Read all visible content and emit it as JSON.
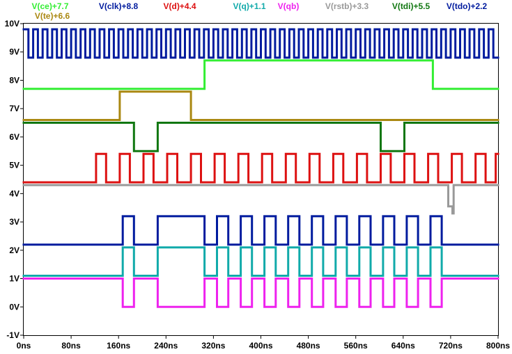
{
  "chart_data": {
    "type": "line",
    "xlabels": [
      "0ns",
      "80ns",
      "160ns",
      "240ns",
      "320ns",
      "400ns",
      "480ns",
      "560ns",
      "640ns",
      "720ns",
      "800ns"
    ],
    "ylabels": [
      "10V",
      "9V",
      "8V",
      "7V",
      "6V",
      "5V",
      "4V",
      "3V",
      "2V",
      "1V",
      "0V",
      "-1V"
    ],
    "xlim": [
      0,
      800
    ],
    "ylim": [
      -1,
      10
    ],
    "x_unit": "ns",
    "y_unit": "V",
    "grid": false,
    "legend_placement": "top",
    "series": [
      {
        "name": "V(ce)+7.7",
        "color": "#33ee33",
        "offset": 7.7,
        "kind": "steps",
        "initial": 0,
        "transitions": [
          [
            305,
            1
          ],
          [
            690,
            0
          ]
        ]
      },
      {
        "name": "V(clk)+8.8",
        "color": "#001b9e",
        "offset": 8.8,
        "kind": "clock",
        "period": 16,
        "duty": 0.5
      },
      {
        "name": "V(d)+4.4",
        "color": "#dd1111",
        "offset": 4.4,
        "kind": "steps",
        "initial": 0,
        "transitions": [
          [
            122,
            1
          ],
          [
            139,
            0
          ],
          [
            162,
            1
          ],
          [
            179,
            0
          ],
          [
            202,
            1
          ],
          [
            219,
            0
          ],
          [
            242,
            1
          ],
          [
            259,
            0
          ],
          [
            282,
            1
          ],
          [
            299,
            0
          ],
          [
            322,
            1
          ],
          [
            339,
            0
          ],
          [
            362,
            1
          ],
          [
            379,
            0
          ],
          [
            402,
            1
          ],
          [
            419,
            0
          ],
          [
            442,
            1
          ],
          [
            459,
            0
          ],
          [
            482,
            1
          ],
          [
            499,
            0
          ],
          [
            522,
            1
          ],
          [
            539,
            0
          ],
          [
            562,
            1
          ],
          [
            579,
            0
          ],
          [
            602,
            1
          ],
          [
            619,
            0
          ],
          [
            642,
            1
          ],
          [
            659,
            0
          ],
          [
            682,
            1
          ],
          [
            699,
            0
          ],
          [
            722,
            1
          ],
          [
            739,
            0
          ],
          [
            762,
            1
          ],
          [
            779,
            0
          ],
          [
            796,
            1
          ]
        ]
      },
      {
        "name": "V(q)+1.1",
        "color": "#11aaaa",
        "offset": 1.1,
        "kind": "steps",
        "initial": 0,
        "transitions": [
          [
            167,
            1
          ],
          [
            186,
            0
          ],
          [
            226,
            1
          ],
          [
            305,
            0
          ],
          [
            326,
            1
          ],
          [
            345,
            0
          ],
          [
            366,
            1
          ],
          [
            385,
            0
          ],
          [
            406,
            1
          ],
          [
            425,
            0
          ],
          [
            446,
            1
          ],
          [
            465,
            0
          ],
          [
            486,
            1
          ],
          [
            505,
            0
          ],
          [
            526,
            1
          ],
          [
            545,
            0
          ],
          [
            566,
            1
          ],
          [
            585,
            0
          ],
          [
            606,
            1
          ],
          [
            625,
            0
          ],
          [
            646,
            1
          ],
          [
            665,
            0
          ],
          [
            686,
            1
          ],
          [
            705,
            0
          ]
        ]
      },
      {
        "name": "V(qb)",
        "color": "#ee22ee",
        "offset": 0,
        "kind": "steps",
        "initial": 1,
        "transitions": [
          [
            167,
            0
          ],
          [
            186,
            1
          ],
          [
            226,
            0
          ],
          [
            305,
            1
          ],
          [
            326,
            0
          ],
          [
            345,
            1
          ],
          [
            366,
            0
          ],
          [
            385,
            1
          ],
          [
            406,
            0
          ],
          [
            425,
            1
          ],
          [
            446,
            0
          ],
          [
            465,
            1
          ],
          [
            486,
            0
          ],
          [
            505,
            1
          ],
          [
            526,
            0
          ],
          [
            545,
            1
          ],
          [
            566,
            0
          ],
          [
            585,
            1
          ],
          [
            606,
            0
          ],
          [
            625,
            1
          ],
          [
            646,
            0
          ],
          [
            665,
            1
          ],
          [
            686,
            0
          ],
          [
            705,
            1
          ]
        ]
      },
      {
        "name": "V(rstb)+3.3",
        "color": "#999999",
        "offset": 3.3,
        "kind": "steps",
        "initial": 1,
        "transitions": [
          [
            716,
            0.25
          ],
          [
            723,
            0
          ],
          [
            725,
            1
          ]
        ]
      },
      {
        "name": "V(tdi)+5.5",
        "color": "#117711",
        "offset": 5.5,
        "kind": "steps",
        "initial": 1,
        "transitions": [
          [
            186,
            0
          ],
          [
            226,
            1
          ],
          [
            602,
            0
          ],
          [
            642,
            1
          ]
        ]
      },
      {
        "name": "V(tdo)+2.2",
        "color": "#001b9e",
        "offset": 2.2,
        "kind": "steps",
        "initial": 0,
        "transitions": [
          [
            167,
            1
          ],
          [
            186,
            0
          ],
          [
            226,
            1
          ],
          [
            305,
            0
          ],
          [
            326,
            1
          ],
          [
            345,
            0
          ],
          [
            366,
            1
          ],
          [
            385,
            0
          ],
          [
            406,
            1
          ],
          [
            425,
            0
          ],
          [
            446,
            1
          ],
          [
            465,
            0
          ],
          [
            486,
            1
          ],
          [
            505,
            0
          ],
          [
            526,
            1
          ],
          [
            545,
            0
          ],
          [
            566,
            1
          ],
          [
            585,
            0
          ],
          [
            606,
            1
          ],
          [
            625,
            0
          ],
          [
            646,
            1
          ],
          [
            665,
            0
          ],
          [
            686,
            1
          ],
          [
            705,
            0
          ]
        ]
      },
      {
        "name": "V(te)+6.6",
        "color": "#aa8811",
        "offset": 6.6,
        "kind": "steps",
        "initial": 0,
        "transitions": [
          [
            162,
            1
          ],
          [
            282,
            0
          ]
        ]
      }
    ]
  }
}
